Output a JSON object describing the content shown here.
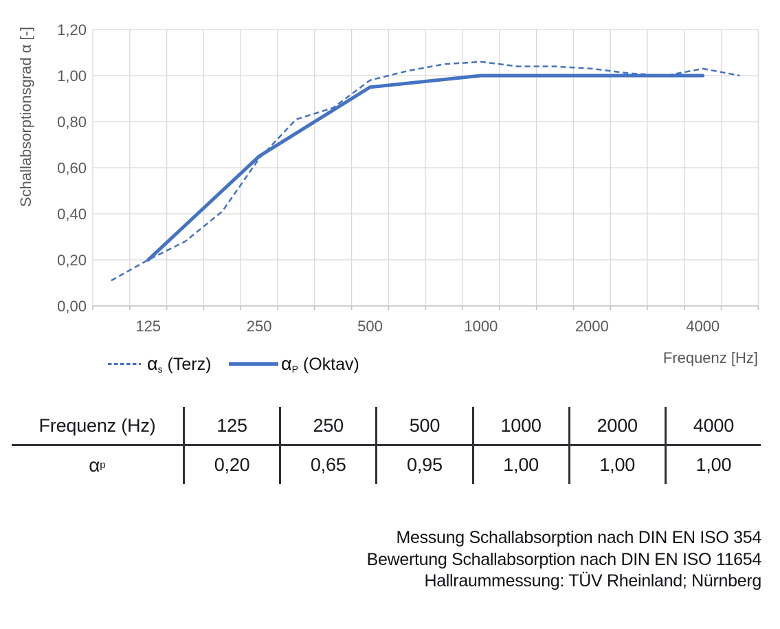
{
  "chart": {
    "y_axis": {
      "title": "Schallabsorptionsgrad α [-]",
      "tick_labels": [
        "0,00",
        "0,20",
        "0,40",
        "0,60",
        "0,80",
        "1,00",
        "1,20"
      ]
    },
    "x_axis": {
      "title": "Frequenz [Hz]",
      "tick_labels": [
        "125",
        "250",
        "500",
        "1000",
        "2000",
        "4000"
      ]
    },
    "legend": {
      "terz": {
        "symbol": "α",
        "sub": "s",
        "rest": " (Terz)"
      },
      "oktav": {
        "symbol": "α",
        "sub": "P",
        "rest": " (Oktav)"
      }
    },
    "colors": {
      "line_blue": "#4472C4",
      "gridline": "#D9D9D9",
      "axis_line": "#C3C3C3",
      "tick_text": "#595959"
    }
  },
  "chart_data": {
    "type": "line",
    "x_scale": "third-octave categories (log)",
    "categories": [
      100,
      125,
      160,
      200,
      250,
      315,
      400,
      500,
      630,
      800,
      1000,
      1250,
      1600,
      2000,
      2500,
      3150,
      4000,
      5000
    ],
    "series": [
      {
        "name": "αs (Terz)",
        "style": "dashed",
        "color": "#4472C4",
        "categories": [
          100,
          125,
          160,
          200,
          250,
          315,
          400,
          500,
          630,
          800,
          1000,
          1250,
          1600,
          2000,
          2500,
          3150,
          4000,
          5000
        ],
        "values": [
          0.11,
          0.2,
          0.28,
          0.41,
          0.64,
          0.81,
          0.86,
          0.98,
          1.02,
          1.05,
          1.06,
          1.04,
          1.04,
          1.03,
          1.01,
          1.0,
          1.03,
          1.0
        ]
      },
      {
        "name": "αP (Oktav)",
        "style": "solid",
        "color": "#4472C4",
        "categories": [
          125,
          250,
          500,
          1000,
          2000,
          4000
        ],
        "values": [
          0.2,
          0.65,
          0.95,
          1.0,
          1.0,
          1.0
        ]
      }
    ],
    "title": "",
    "xlabel": "Frequenz [Hz]",
    "ylabel": "Schallabsorptionsgrad α [-]",
    "ylim": [
      0,
      1.2
    ],
    "y_step": 0.2,
    "grid": true,
    "legend_position": "bottom-left"
  },
  "freq_table": {
    "header_label": "Frequenz (Hz)",
    "row_symbol": "α",
    "row_sub": "p",
    "frequencies": [
      "125",
      "250",
      "500",
      "1000",
      "2000",
      "4000"
    ],
    "values": [
      "0,20",
      "0,65",
      "0,95",
      "1,00",
      "1,00",
      "1,00"
    ]
  },
  "annotation": {
    "lines": [
      "Messung Schallabsorption nach DIN EN ISO 354",
      "Bewertung Schallabsorption nach DIN EN ISO 11654",
      "Hallraummessung: TÜV Rheinland; Nürnberg"
    ]
  }
}
